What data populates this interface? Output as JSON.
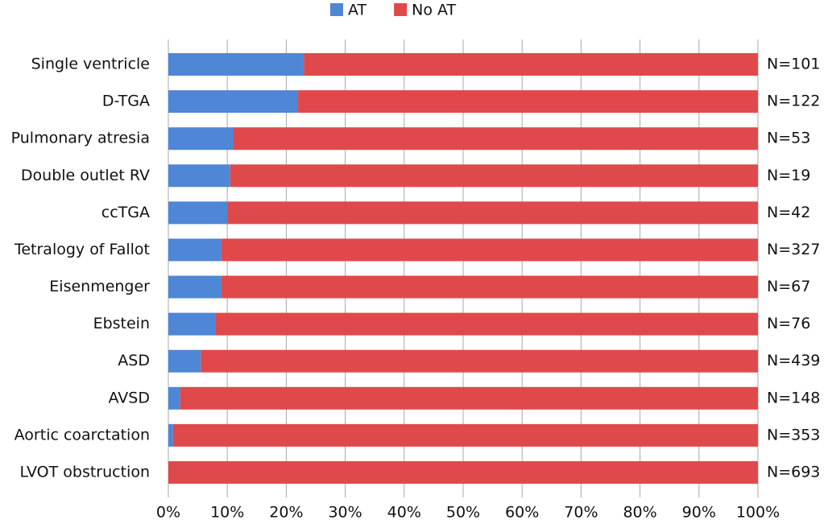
{
  "chart_data": {
    "type": "stacked-bar-horizontal",
    "categories": [
      "Single ventricle",
      "D-TGA",
      "Pulmonary atresia",
      "Double outlet RV",
      "ccTGA",
      "Tetralogy of Fallot",
      "Eisenmenger",
      "Ebstein",
      "ASD",
      "AVSD",
      "Aortic coarctation",
      "LVOT obstruction"
    ],
    "series": [
      {
        "name": "AT",
        "color": "#4f86d6",
        "values": [
          23,
          22,
          11,
          10.5,
          10,
          9,
          9,
          8,
          5.5,
          2,
          0.8,
          0
        ]
      },
      {
        "name": "No AT",
        "color": "#e0494b",
        "values": [
          77,
          78,
          89,
          89.5,
          90,
          91,
          91,
          92,
          94.5,
          98,
          99.2,
          100
        ]
      }
    ],
    "annotations": [
      "N=101",
      "N=122",
      "N=53",
      "N=19",
      "N=42",
      "N=327",
      "N=67",
      "N=76",
      "N=439",
      "N=148",
      "N=353",
      "N=693"
    ],
    "xlim": [
      0,
      100
    ],
    "xticks": [
      {
        "value": 0,
        "label": "0%"
      },
      {
        "value": 10,
        "label": "10%"
      },
      {
        "value": 20,
        "label": "20%"
      },
      {
        "value": 30,
        "label": "30%"
      },
      {
        "value": 40,
        "label": "40%"
      },
      {
        "value": 50,
        "label": "50%"
      },
      {
        "value": 60,
        "label": "60%"
      },
      {
        "value": 70,
        "label": "70%"
      },
      {
        "value": 80,
        "label": "80%"
      },
      {
        "value": 90,
        "label": "90%"
      },
      {
        "value": 100,
        "label": "100%"
      }
    ],
    "grid": true,
    "legend": "top"
  }
}
